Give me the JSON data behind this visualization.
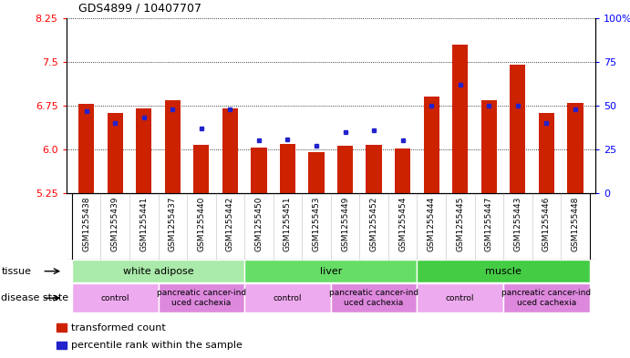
{
  "title": "GDS4899 / 10407707",
  "samples": [
    "GSM1255438",
    "GSM1255439",
    "GSM1255441",
    "GSM1255437",
    "GSM1255440",
    "GSM1255442",
    "GSM1255450",
    "GSM1255451",
    "GSM1255453",
    "GSM1255449",
    "GSM1255452",
    "GSM1255454",
    "GSM1255444",
    "GSM1255445",
    "GSM1255447",
    "GSM1255443",
    "GSM1255446",
    "GSM1255448"
  ],
  "transformed_count": [
    6.78,
    6.63,
    6.7,
    6.85,
    6.08,
    6.7,
    6.04,
    6.1,
    5.95,
    6.07,
    6.08,
    6.02,
    6.9,
    7.8,
    6.85,
    7.45,
    6.62,
    6.8
  ],
  "percentile_rank": [
    47,
    40,
    43,
    48,
    37,
    48,
    30,
    31,
    27,
    35,
    36,
    30,
    50,
    62,
    50,
    50,
    40,
    48
  ],
  "ylim_left": [
    5.25,
    8.25
  ],
  "ylim_right": [
    0,
    100
  ],
  "yticks_left": [
    5.25,
    6.0,
    6.75,
    7.5,
    8.25
  ],
  "yticks_right": [
    0,
    25,
    50,
    75,
    100
  ],
  "bar_color": "#cc2200",
  "dot_color": "#2222cc",
  "bar_bottom": 5.25,
  "tissue_groups": [
    {
      "label": "white adipose",
      "start": 0,
      "end": 6,
      "color": "#aaeaaa"
    },
    {
      "label": "liver",
      "start": 6,
      "end": 12,
      "color": "#66dd66"
    },
    {
      "label": "muscle",
      "start": 12,
      "end": 18,
      "color": "#44cc44"
    }
  ],
  "disease_groups": [
    {
      "label": "control",
      "start": 0,
      "end": 3,
      "color": "#eeaaee"
    },
    {
      "label": "pancreatic cancer-ind\nuced cachexia",
      "start": 3,
      "end": 6,
      "color": "#dd88dd"
    },
    {
      "label": "control",
      "start": 6,
      "end": 9,
      "color": "#eeaaee"
    },
    {
      "label": "pancreatic cancer-ind\nuced cachexia",
      "start": 9,
      "end": 12,
      "color": "#dd88dd"
    },
    {
      "label": "control",
      "start": 12,
      "end": 15,
      "color": "#eeaaee"
    },
    {
      "label": "pancreatic cancer-ind\nuced cachexia",
      "start": 15,
      "end": 18,
      "color": "#dd88dd"
    }
  ],
  "legend_items": [
    {
      "color": "#cc2200",
      "label": "transformed count"
    },
    {
      "color": "#2222cc",
      "label": "percentile rank within the sample"
    }
  ],
  "xtick_bg": "#cccccc",
  "grid_color": "black",
  "plot_bg": "#ffffff",
  "fig_bg": "#ffffff"
}
